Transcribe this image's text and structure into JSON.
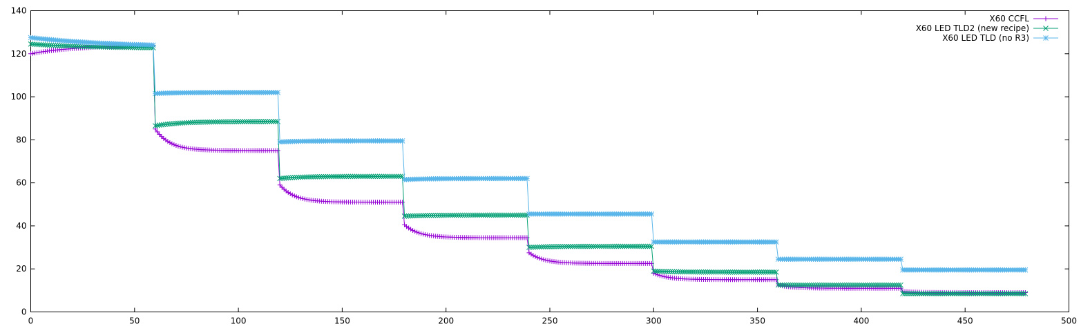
{
  "chart_data": {
    "type": "line",
    "title": "",
    "xlabel": "",
    "ylabel": "",
    "xlim": [
      0,
      500
    ],
    "ylim": [
      0,
      140
    ],
    "xticks": [
      0,
      50,
      100,
      150,
      200,
      250,
      300,
      350,
      400,
      450,
      500
    ],
    "yticks": [
      0,
      20,
      40,
      60,
      80,
      100,
      120,
      140
    ],
    "grid": false,
    "legend": "top-right",
    "series": [
      {
        "name": "X60 CCFL",
        "color": "#9400d3",
        "marker": "plus",
        "segments": [
          {
            "start": 0,
            "end": 59,
            "v0": 120,
            "vinf": 124,
            "tau": 22
          },
          {
            "start": 60,
            "end": 119,
            "v0": 85,
            "vinf": 75,
            "tau": 7
          },
          {
            "start": 120,
            "end": 179,
            "v0": 59,
            "vinf": 51,
            "tau": 7
          },
          {
            "start": 180,
            "end": 239,
            "v0": 40.5,
            "vinf": 34.5,
            "tau": 7
          },
          {
            "start": 240,
            "end": 299,
            "v0": 27.5,
            "vinf": 22.5,
            "tau": 7
          },
          {
            "start": 300,
            "end": 359,
            "v0": 18,
            "vinf": 15,
            "tau": 7
          },
          {
            "start": 360,
            "end": 419,
            "v0": 12.5,
            "vinf": 11,
            "tau": 7
          },
          {
            "start": 420,
            "end": 479,
            "v0": 9.5,
            "vinf": 9,
            "tau": 7
          }
        ]
      },
      {
        "name": "X60 LED TLD2 (new recipe)",
        "color": "#009e73",
        "marker": "cross",
        "segments": [
          {
            "start": 0,
            "end": 59,
            "v0": 124.5,
            "vinf": 122.5,
            "tau": 30
          },
          {
            "start": 60,
            "end": 119,
            "v0": 86.5,
            "vinf": 88.5,
            "tau": 12
          },
          {
            "start": 120,
            "end": 179,
            "v0": 62,
            "vinf": 63,
            "tau": 10
          },
          {
            "start": 180,
            "end": 239,
            "v0": 44.5,
            "vinf": 45,
            "tau": 10
          },
          {
            "start": 240,
            "end": 299,
            "v0": 30,
            "vinf": 30.5,
            "tau": 10
          },
          {
            "start": 300,
            "end": 359,
            "v0": 19,
            "vinf": 18.5,
            "tau": 10
          },
          {
            "start": 360,
            "end": 419,
            "v0": 12.5,
            "vinf": 12.5,
            "tau": 10
          },
          {
            "start": 420,
            "end": 479,
            "v0": 8.5,
            "vinf": 8.5,
            "tau": 10
          }
        ]
      },
      {
        "name": "X60 LED TLD (no R3)",
        "color": "#56b4e9",
        "marker": "star",
        "segments": [
          {
            "start": 0,
            "end": 59,
            "v0": 127.5,
            "vinf": 123,
            "tau": 40
          },
          {
            "start": 60,
            "end": 119,
            "v0": 101.5,
            "vinf": 102,
            "tau": 10
          },
          {
            "start": 120,
            "end": 179,
            "v0": 79,
            "vinf": 79.5,
            "tau": 10
          },
          {
            "start": 180,
            "end": 239,
            "v0": 61.5,
            "vinf": 62,
            "tau": 10
          },
          {
            "start": 240,
            "end": 299,
            "v0": 45.5,
            "vinf": 45.5,
            "tau": 10
          },
          {
            "start": 300,
            "end": 359,
            "v0": 32.5,
            "vinf": 32.5,
            "tau": 10
          },
          {
            "start": 360,
            "end": 419,
            "v0": 24.5,
            "vinf": 24.5,
            "tau": 10
          },
          {
            "start": 420,
            "end": 479,
            "v0": 19.5,
            "vinf": 19.5,
            "tau": 10
          }
        ]
      }
    ]
  }
}
